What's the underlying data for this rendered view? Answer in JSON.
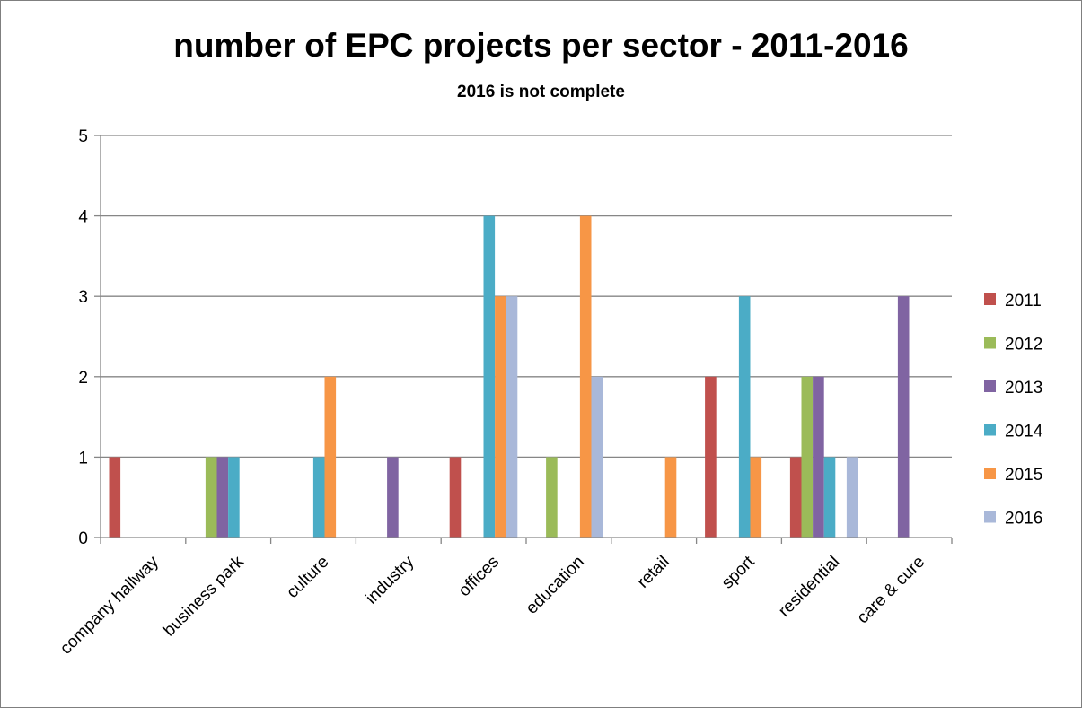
{
  "chart_data": {
    "type": "bar",
    "title": "number of EPC projects per sector - 2011-2016",
    "subtitle": "2016 is not complete",
    "categories": [
      "company hallway",
      "business park",
      "culture",
      "industry",
      "offices",
      "education",
      "retail",
      "sport",
      "residential",
      "care & cure"
    ],
    "series": [
      {
        "name": "2011",
        "color": "#c0504d",
        "values": [
          1,
          0,
          0,
          0,
          1,
          0,
          0,
          2,
          1,
          0
        ]
      },
      {
        "name": "2012",
        "color": "#9bbb59",
        "values": [
          0,
          1,
          0,
          0,
          0,
          1,
          0,
          0,
          2,
          0
        ]
      },
      {
        "name": "2013",
        "color": "#8064a2",
        "values": [
          0,
          1,
          0,
          1,
          0,
          0,
          0,
          0,
          2,
          3
        ]
      },
      {
        "name": "2014",
        "color": "#4bacc6",
        "values": [
          0,
          1,
          1,
          0,
          4,
          0,
          0,
          3,
          1,
          0
        ]
      },
      {
        "name": "2015",
        "color": "#f79646",
        "values": [
          0,
          0,
          2,
          0,
          3,
          4,
          1,
          1,
          0,
          0
        ]
      },
      {
        "name": "2016",
        "color": "#a9b8d9",
        "values": [
          0,
          0,
          0,
          0,
          3,
          2,
          0,
          0,
          1,
          0
        ]
      }
    ],
    "ylim": [
      0,
      5
    ],
    "yticks": [
      0,
      1,
      2,
      3,
      4,
      5
    ],
    "grid": true,
    "legend_position": "right"
  }
}
